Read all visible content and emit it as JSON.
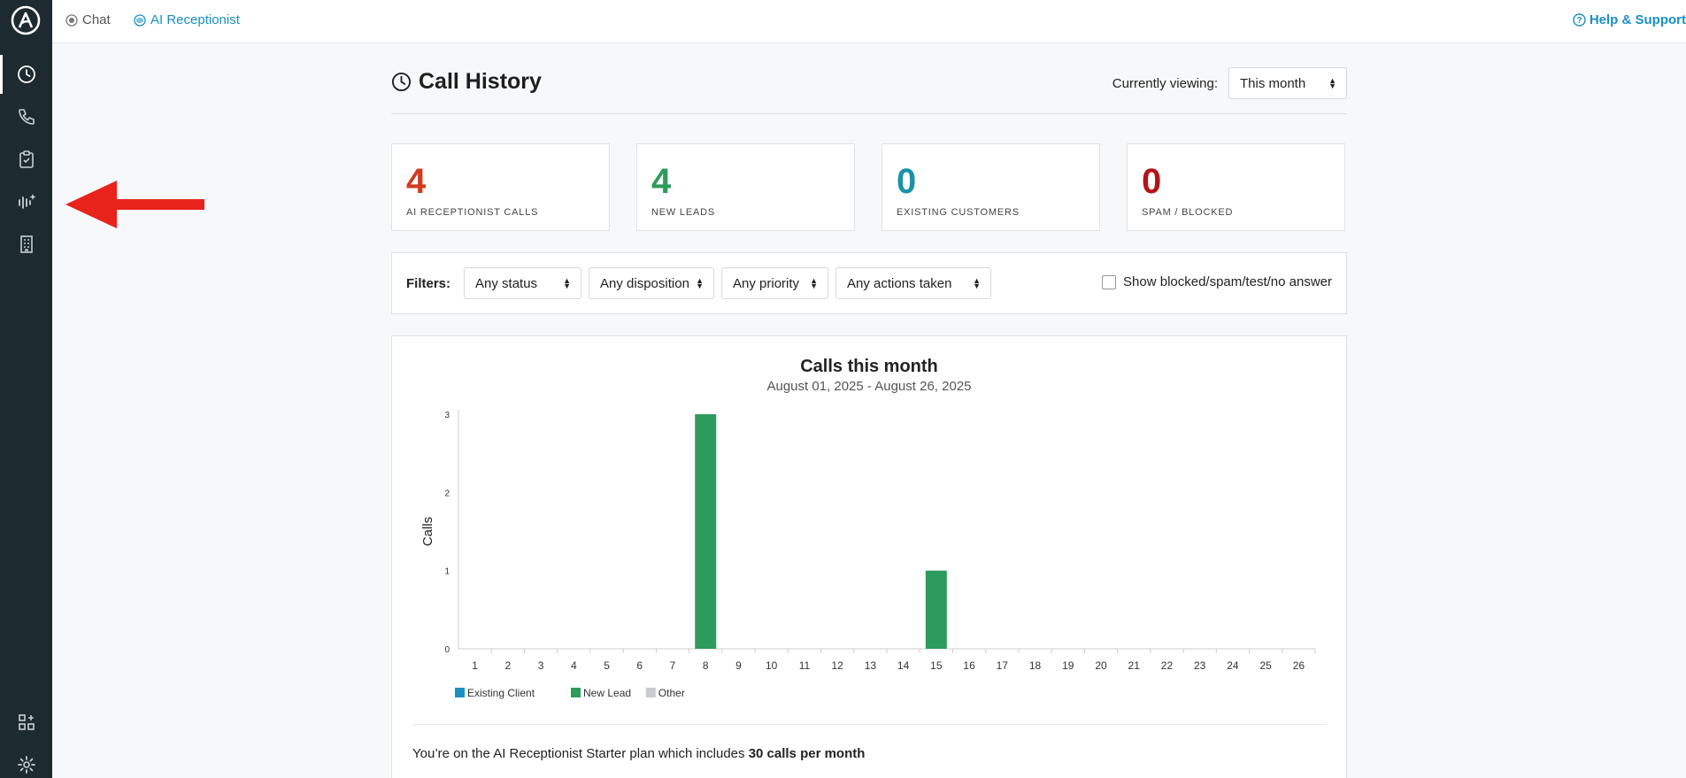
{
  "topbar": {
    "chat_label": "Chat",
    "ai_label": "AI Receptionist",
    "help_label": "Help & Support"
  },
  "sidebar": {
    "items": [
      "clock-icon",
      "phone-icon",
      "clipboard-check-icon",
      "sound-wave-sparkle-icon",
      "building-icon"
    ],
    "bottom": [
      "dashboard-add-icon",
      "gear-icon"
    ]
  },
  "header": {
    "title": "Call History",
    "viewing_label": "Currently viewing:",
    "viewing_value": "This month"
  },
  "stats": [
    {
      "value": "4",
      "label": "AI RECEPTIONIST CALLS",
      "color": "#cf3c1f"
    },
    {
      "value": "4",
      "label": "NEW LEADS",
      "color": "#2e9b5e"
    },
    {
      "value": "0",
      "label": "EXISTING CUSTOMERS",
      "color": "#1a93a8"
    },
    {
      "value": "0",
      "label": "SPAM / BLOCKED",
      "color": "#b3141a"
    }
  ],
  "filters": {
    "label": "Filters:",
    "status": "Any status",
    "disposition": "Any disposition",
    "priority": "Any priority",
    "actions": "Any actions taken",
    "checkbox_label": "Show blocked/spam/test/no answer"
  },
  "chart_data": {
    "type": "bar",
    "title": "Calls this month",
    "subtitle": "August 01, 2025 - August 26, 2025",
    "ylabel": "Calls",
    "xlabel": "",
    "ylim": [
      0,
      3
    ],
    "yticks": [
      0,
      1,
      2,
      3
    ],
    "categories": [
      "1",
      "2",
      "3",
      "4",
      "5",
      "6",
      "7",
      "8",
      "9",
      "10",
      "11",
      "12",
      "13",
      "14",
      "15",
      "16",
      "17",
      "18",
      "19",
      "20",
      "21",
      "22",
      "23",
      "24",
      "25",
      "26"
    ],
    "series": [
      {
        "name": "Existing Client",
        "color": "#1a93c4",
        "values": [
          0,
          0,
          0,
          0,
          0,
          0,
          0,
          0,
          0,
          0,
          0,
          0,
          0,
          0,
          0,
          0,
          0,
          0,
          0,
          0,
          0,
          0,
          0,
          0,
          0,
          0
        ]
      },
      {
        "name": "New Lead",
        "color": "#2e9b5e",
        "values": [
          0,
          0,
          0,
          0,
          0,
          0,
          0,
          3,
          0,
          0,
          0,
          0,
          0,
          0,
          1,
          0,
          0,
          0,
          0,
          0,
          0,
          0,
          0,
          0,
          0,
          0
        ]
      },
      {
        "name": "Other",
        "color": "#c8ccd0",
        "values": [
          0,
          0,
          0,
          0,
          0,
          0,
          0,
          0,
          0,
          0,
          0,
          0,
          0,
          0,
          0,
          0,
          0,
          0,
          0,
          0,
          0,
          0,
          0,
          0,
          0,
          0
        ]
      }
    ],
    "grid": false,
    "legend": "bottom-left"
  },
  "plan": {
    "prefix": "You’re on the AI Receptionist Starter plan which includes ",
    "bold": "30 calls per month"
  },
  "colors": {
    "annotation_arrow": "#e8231c"
  }
}
